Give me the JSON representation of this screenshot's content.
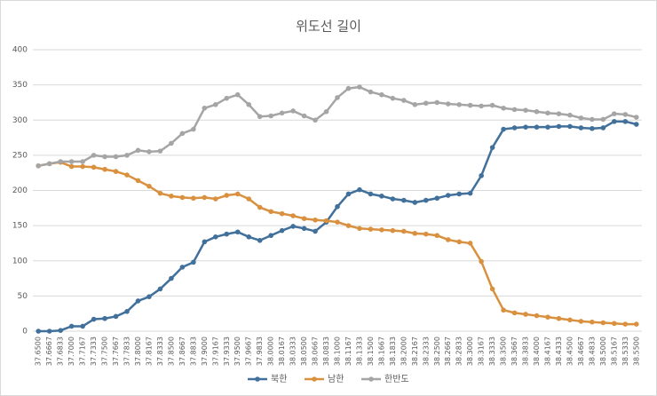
{
  "chart_data": {
    "type": "line",
    "title": "위도선 길이",
    "categories": [
      "37.6500",
      "37.6667",
      "37.6833",
      "37.7000",
      "37.7167",
      "37.7333",
      "37.7500",
      "37.7667",
      "37.7833",
      "37.8000",
      "37.8167",
      "37.8333",
      "37.8500",
      "37.8667",
      "37.8833",
      "37.9000",
      "37.9167",
      "37.9333",
      "37.9500",
      "37.9667",
      "37.9833",
      "38.0000",
      "38.0167",
      "38.0333",
      "38.0500",
      "38.0667",
      "38.0833",
      "38.1000",
      "38.1167",
      "38.1333",
      "38.1500",
      "38.1667",
      "38.1833",
      "38.2000",
      "38.2167",
      "38.2333",
      "38.2500",
      "38.2667",
      "38.2833",
      "38.3000",
      "38.3167",
      "38.3333",
      "38.3500",
      "38.3667",
      "38.3833",
      "38.4000",
      "38.4167",
      "38.4333",
      "38.4500",
      "38.4667",
      "38.4833",
      "38.5000",
      "38.5167",
      "38.5333",
      "38.5500"
    ],
    "series": [
      {
        "name": "북한",
        "color": "#41709b",
        "values": [
          0,
          0,
          1,
          7,
          7,
          17,
          18,
          21,
          28,
          43,
          49,
          60,
          75,
          91,
          98,
          127,
          134,
          138,
          141,
          134,
          129,
          136,
          143,
          149,
          146,
          142,
          155,
          177,
          195,
          201,
          195,
          192,
          188,
          186,
          183,
          186,
          189,
          193,
          195,
          196,
          221,
          261,
          287,
          289,
          290,
          290,
          290,
          291,
          291,
          289,
          288,
          289,
          298,
          298,
          294
        ]
      },
      {
        "name": "남한",
        "color": "#d9913f",
        "values": [
          235,
          238,
          240,
          234,
          234,
          233,
          230,
          227,
          222,
          214,
          206,
          196,
          192,
          190,
          189,
          190,
          188,
          193,
          195,
          188,
          176,
          170,
          167,
          164,
          160,
          158,
          157,
          155,
          150,
          146,
          145,
          144,
          143,
          142,
          139,
          138,
          136,
          130,
          127,
          125,
          99,
          60,
          30,
          26,
          24,
          22,
          20,
          18,
          16,
          14,
          13,
          12,
          11,
          10,
          10
        ]
      },
      {
        "name": "한반도",
        "color": "#a5a5a5",
        "values": [
          235,
          238,
          241,
          241,
          241,
          250,
          248,
          248,
          250,
          257,
          255,
          256,
          267,
          281,
          287,
          317,
          322,
          331,
          336,
          322,
          305,
          306,
          310,
          313,
          306,
          300,
          312,
          332,
          345,
          347,
          340,
          336,
          331,
          328,
          322,
          324,
          325,
          323,
          322,
          321,
          320,
          321,
          317,
          315,
          314,
          312,
          310,
          309,
          307,
          303,
          301,
          301,
          309,
          308,
          304
        ]
      }
    ],
    "ylim": [
      0,
      400
    ],
    "yticks": [
      0,
      50,
      100,
      150,
      200,
      250,
      300,
      350,
      400
    ],
    "grid": true,
    "legend": "bottom"
  }
}
